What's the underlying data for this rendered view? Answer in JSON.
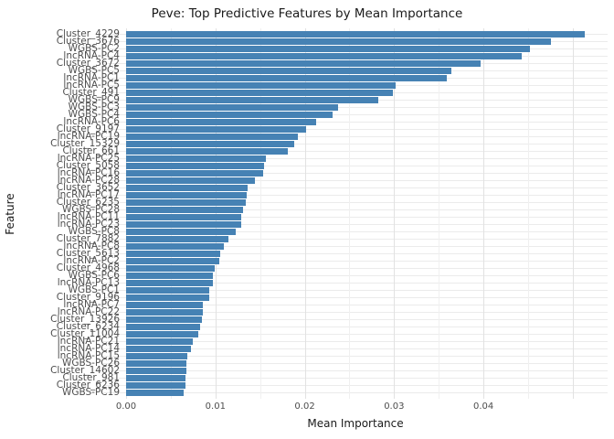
{
  "chart_data": {
    "type": "bar",
    "orientation": "horizontal",
    "title": "Peve: Top Predictive Features by Mean Importance",
    "xlabel": "Mean Importance",
    "ylabel": "Feature",
    "bar_color": "#4682B4",
    "grid": true,
    "legend": "none",
    "xlim": [
      -0.00256,
      0.0539
    ],
    "x_ticks": [
      {
        "label": "0.00",
        "value": 0.0
      },
      {
        "label": "0.01",
        "value": 0.01
      },
      {
        "label": "0.02",
        "value": 0.02
      },
      {
        "label": "0.03",
        "value": 0.03
      },
      {
        "label": "0.04",
        "value": 0.04
      }
    ],
    "x_grid_major": [
      0.0,
      0.01,
      0.02,
      0.03,
      0.04,
      0.05
    ],
    "x_grid_minor": [
      0.005,
      0.015,
      0.025,
      0.035,
      0.045
    ],
    "categories": [
      "Cluster_4229",
      "Cluster_3676",
      "WGBS-PC2",
      "lncRNA-PC4",
      "Cluster_3672",
      "WGBS-PC5",
      "lncRNA-PC1",
      "lncRNA-PC5",
      "Cluster_491",
      "WGBS-PC9",
      "WGBS-PC3",
      "WGBS-PC4",
      "lncRNA-PC6",
      "Cluster_9197",
      "lncRNA-PC19",
      "Cluster_15329",
      "Cluster_661",
      "lncRNA-PC25",
      "Cluster_5058",
      "lncRNA-PC16",
      "lncRNA-PC28",
      "Cluster_3652",
      "lncRNA-PC17",
      "Cluster_6235",
      "WGBS-PC28",
      "lncRNA-PC11",
      "lncRNA-PC23",
      "WGBS-PC8",
      "Cluster_7882",
      "lncRNA-PC8",
      "Cluster_5613",
      "lncRNA-PC2",
      "Cluster_4968",
      "WGBS-PC6",
      "lncRNA-PC13",
      "WGBS-PC1",
      "Cluster_9196",
      "lncRNA-PC7",
      "lncRNA-PC22",
      "Cluster_13926",
      "Cluster_6234",
      "Cluster_11004",
      "lncRNA-PC21",
      "lncRNA-PC14",
      "lncRNA-PC15",
      "WGBS-PC26",
      "Cluster_14602",
      "Cluster_981",
      "Cluster_6236",
      "WGBS-PC19"
    ],
    "values": [
      0.0513,
      0.0476,
      0.0452,
      0.0443,
      0.0397,
      0.0364,
      0.0359,
      0.0302,
      0.0299,
      0.0282,
      0.0237,
      0.0231,
      0.0213,
      0.0201,
      0.0192,
      0.0188,
      0.0181,
      0.0156,
      0.0154,
      0.0153,
      0.0144,
      0.0136,
      0.0135,
      0.0134,
      0.0131,
      0.0129,
      0.0129,
      0.0123,
      0.0115,
      0.0109,
      0.0105,
      0.0104,
      0.0099,
      0.0097,
      0.0097,
      0.0093,
      0.0093,
      0.0086,
      0.0086,
      0.0085,
      0.0083,
      0.0081,
      0.0075,
      0.0073,
      0.0069,
      0.0067,
      0.0067,
      0.0066,
      0.0066,
      0.0064
    ]
  },
  "colors": {
    "bar": "#4682B4",
    "grid_major": "#e2e2e2",
    "grid_minor": "#f0f0f0",
    "grid_category": "#ebebeb",
    "axis_text": "#4d4d4d",
    "title_text": "#1a1a1a",
    "background": "#ffffff"
  }
}
